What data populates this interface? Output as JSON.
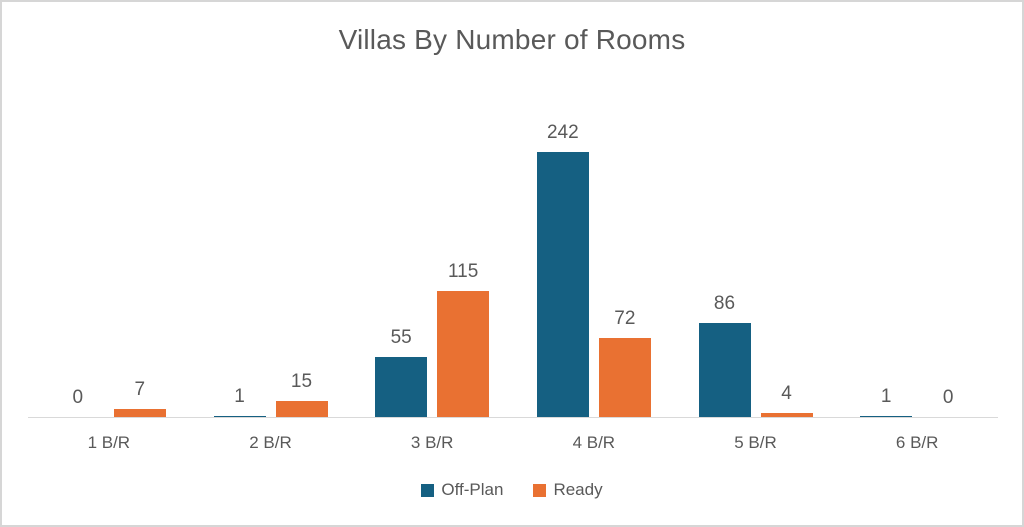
{
  "chart_data": {
    "type": "bar",
    "title": "Villas By Number of Rooms",
    "categories": [
      "1 B/R",
      "2 B/R",
      "3 B/R",
      "4 B/R",
      "5 B/R",
      "6 B/R"
    ],
    "series": [
      {
        "name": "Off-Plan",
        "color": "#156082",
        "values": [
          0,
          1,
          55,
          242,
          86,
          1
        ]
      },
      {
        "name": "Ready",
        "color": "#E97132",
        "values": [
          7,
          15,
          115,
          72,
          4,
          0
        ]
      }
    ],
    "data_labels": true,
    "grid": false,
    "y_axis_visible": false,
    "legend_position": "bottom",
    "ylim": [
      0,
      270
    ],
    "xlabel": "",
    "ylabel": ""
  },
  "colors": {
    "text": "#595959",
    "axis_line": "#d9d9d9",
    "background": "#ffffff",
    "border": "#d6d6d6"
  }
}
